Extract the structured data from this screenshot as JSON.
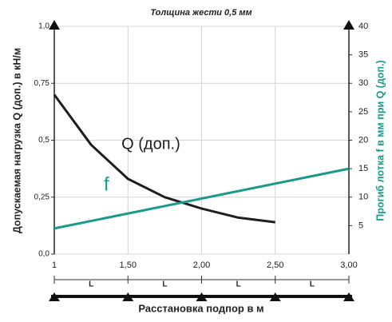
{
  "chart_data": {
    "type": "line",
    "title": "Толщина жести 0,5 мм",
    "y_label": "Допускаемая нагрузка Q (доп.) в кН/м",
    "y2_label": "Прогиб лотка f в мм при Q (доп.)",
    "x_label": "Расстановка подпор в м",
    "span_labels": [
      "L",
      "L",
      "L",
      "L"
    ],
    "xlim": [
      1,
      3
    ],
    "xticks": [
      1,
      {
        "value": 1.5,
        "label": "1,50"
      },
      {
        "value": 2,
        "label": "2,00"
      },
      {
        "value": 2.5,
        "label": "2,50"
      },
      {
        "value": 3,
        "label": "3,00"
      }
    ],
    "ylim": [
      0,
      1
    ],
    "yticks": [
      {
        "value": 0,
        "label": "0,0"
      },
      {
        "value": 0.25,
        "label": "0,25"
      },
      {
        "value": 0.5,
        "label": "0,5"
      },
      {
        "value": 0.75,
        "label": "0,75"
      },
      {
        "value": 1,
        "label": "1,0"
      }
    ],
    "y2lim": [
      0,
      40
    ],
    "y2ticks": [
      5,
      10,
      15,
      20,
      25,
      30,
      35,
      40
    ],
    "grid": true,
    "series": [
      {
        "name": "Q (доп.)",
        "color": "#1e1e1e",
        "x": [
          1,
          1.25,
          1.5,
          1.75,
          2,
          2.25,
          2.5
        ],
        "values": [
          0.7,
          0.48,
          0.33,
          0.25,
          0.2,
          0.16,
          0.14
        ]
      },
      {
        "name": "f",
        "color": "#1a9a8a",
        "axis": "y2",
        "x": [
          1,
          3
        ],
        "values": [
          4.5,
          15
        ]
      }
    ]
  }
}
